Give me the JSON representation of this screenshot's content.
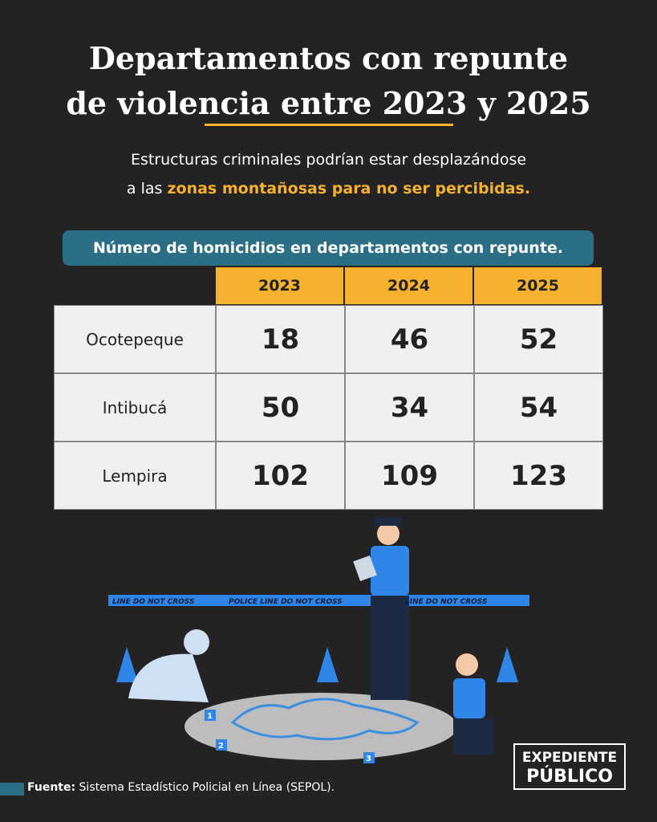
{
  "title": [
    "Departamentos con repunte",
    "de violencia entre 2023 y 2025"
  ],
  "subtitle": {
    "line1": "Estructuras criminales podrían estar desplazándose",
    "line2_start": "a las",
    "line2_highlight": "zonas montañosas para no ser percibidas."
  },
  "table": {
    "caption": "Número de homicidios en departamentos con repunte.",
    "columns": [
      "2023",
      "2024",
      "2025"
    ],
    "rows": [
      {
        "label": "Ocotepeque",
        "values": [
          18,
          46,
          52
        ]
      },
      {
        "label": "Intibucá",
        "values": [
          50,
          34,
          54
        ]
      },
      {
        "label": "Lempira",
        "values": [
          102,
          109,
          123
        ]
      }
    ]
  },
  "illustration": {
    "tape": [
      "LINE DO NOT CROSS",
      "POLICE LINE DO NOT CROSS",
      "LINE DO NOT CROSS"
    ],
    "evidence_markers": [
      "1",
      "2",
      "3"
    ]
  },
  "source": {
    "label": "Fuente:",
    "text": "Sistema Estadístico Policial en Línea (SEPOL)."
  },
  "logo": [
    "EXPEDIENTE",
    "PÚBLICO"
  ]
}
